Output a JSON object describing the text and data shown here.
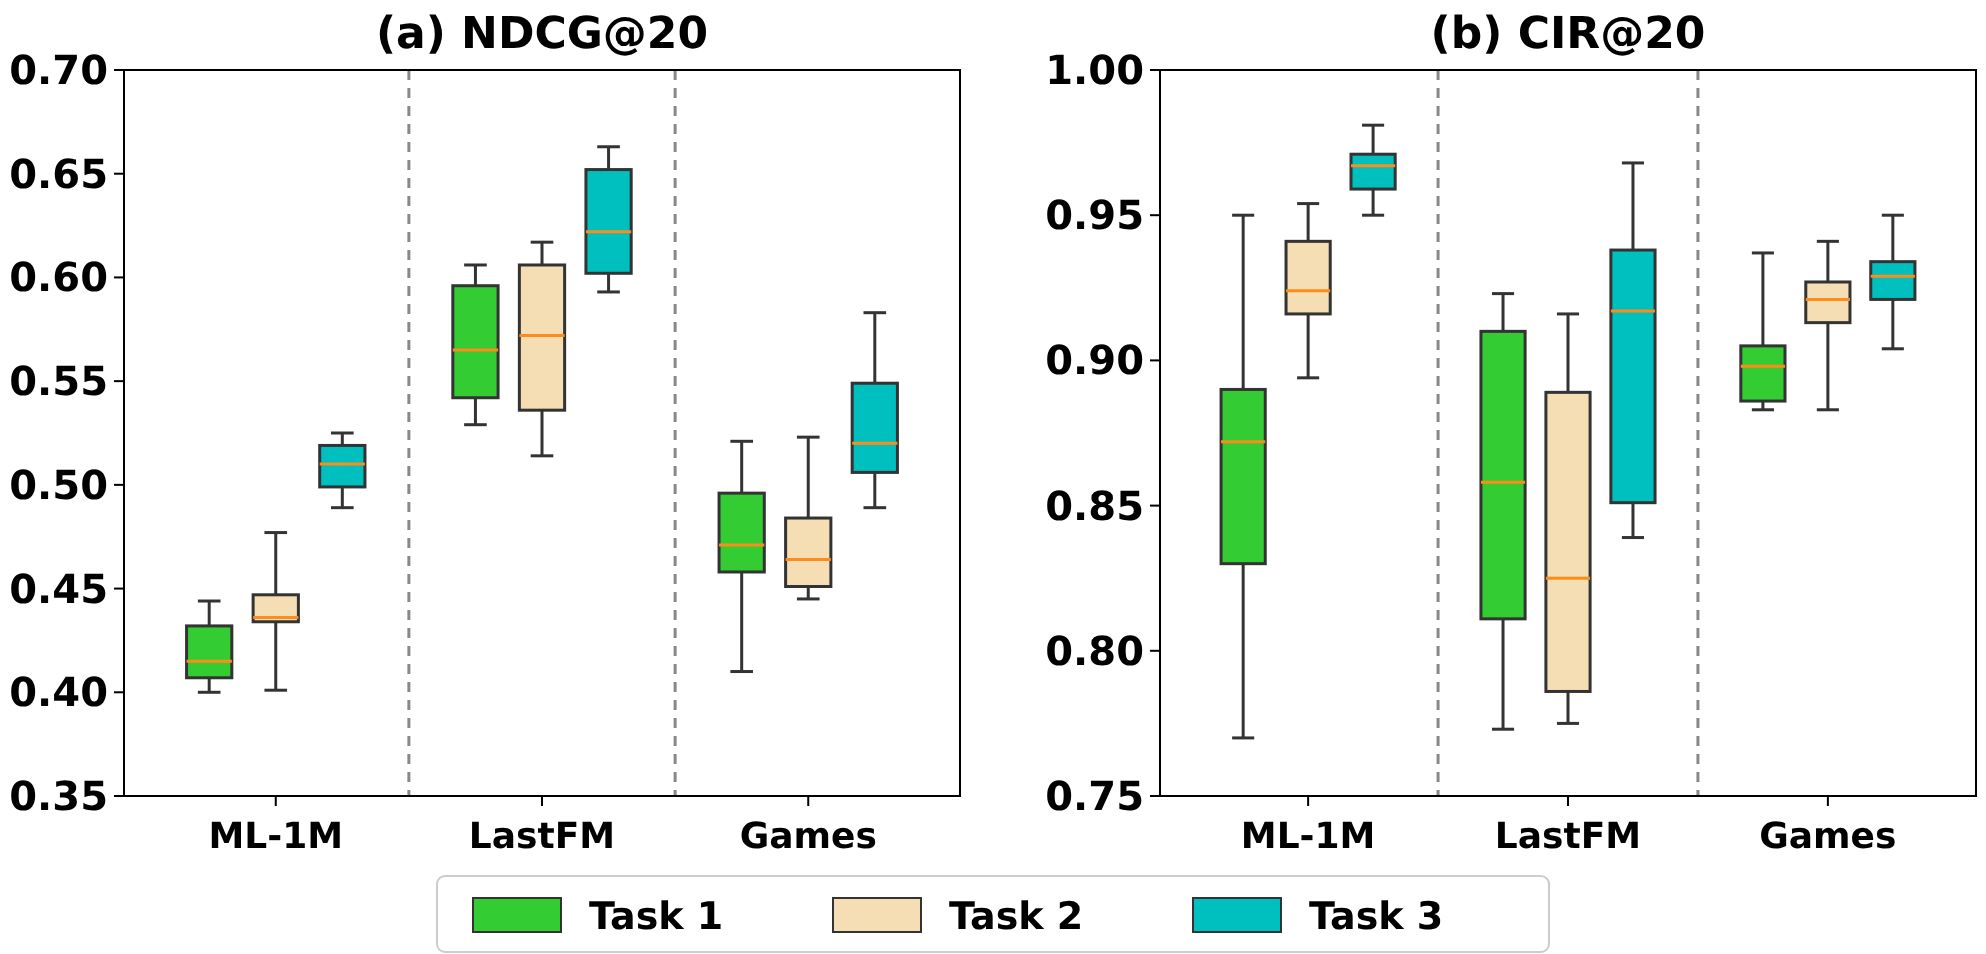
{
  "chart_data": [
    {
      "type": "box",
      "title": "(a) NDCG@20",
      "categories": [
        "ML-1M",
        "LastFM",
        "Games"
      ],
      "ylim": [
        0.35,
        0.7
      ],
      "yticks": [
        {
          "value": 0.35,
          "label": "0.35"
        },
        {
          "value": 0.4,
          "label": "0.40"
        },
        {
          "value": 0.45,
          "label": "0.45"
        },
        {
          "value": 0.5,
          "label": "0.50"
        },
        {
          "value": 0.55,
          "label": "0.55"
        },
        {
          "value": 0.6,
          "label": "0.60"
        },
        {
          "value": 0.65,
          "label": "0.65"
        },
        {
          "value": 0.7,
          "label": "0.70"
        }
      ],
      "legend": "bottom",
      "grid": false,
      "series": [
        {
          "name": "Task 1",
          "color": "#33cc33",
          "boxes": [
            {
              "low": 0.4,
              "q1": 0.407,
              "median": 0.415,
              "q3": 0.432,
              "high": 0.444
            },
            {
              "low": 0.529,
              "q1": 0.542,
              "median": 0.565,
              "q3": 0.596,
              "high": 0.606
            },
            {
              "low": 0.41,
              "q1": 0.458,
              "median": 0.471,
              "q3": 0.496,
              "high": 0.521
            }
          ]
        },
        {
          "name": "Task 2",
          "color": "#f5deb3",
          "boxes": [
            {
              "low": 0.401,
              "q1": 0.434,
              "median": 0.436,
              "q3": 0.447,
              "high": 0.477
            },
            {
              "low": 0.514,
              "q1": 0.536,
              "median": 0.572,
              "q3": 0.606,
              "high": 0.617
            },
            {
              "low": 0.445,
              "q1": 0.451,
              "median": 0.464,
              "q3": 0.484,
              "high": 0.523
            }
          ]
        },
        {
          "name": "Task 3",
          "color": "#00bfbf",
          "boxes": [
            {
              "low": 0.489,
              "q1": 0.499,
              "median": 0.51,
              "q3": 0.519,
              "high": 0.525
            },
            {
              "low": 0.593,
              "q1": 0.602,
              "median": 0.622,
              "q3": 0.652,
              "high": 0.663
            },
            {
              "low": 0.489,
              "q1": 0.506,
              "median": 0.52,
              "q3": 0.549,
              "high": 0.583
            }
          ]
        }
      ]
    },
    {
      "type": "box",
      "title": "(b) CIR@20",
      "categories": [
        "ML-1M",
        "LastFM",
        "Games"
      ],
      "ylim": [
        0.75,
        1.0
      ],
      "yticks": [
        {
          "value": 0.75,
          "label": "0.75"
        },
        {
          "value": 0.8,
          "label": "0.80"
        },
        {
          "value": 0.85,
          "label": "0.85"
        },
        {
          "value": 0.9,
          "label": "0.90"
        },
        {
          "value": 0.95,
          "label": "0.95"
        },
        {
          "value": 1.0,
          "label": "1.00"
        }
      ],
      "grid": false,
      "series": [
        {
          "name": "Task 1",
          "color": "#33cc33",
          "boxes": [
            {
              "low": 0.77,
              "q1": 0.83,
              "median": 0.872,
              "q3": 0.89,
              "high": 0.95
            },
            {
              "low": 0.773,
              "q1": 0.811,
              "median": 0.858,
              "q3": 0.91,
              "high": 0.923
            },
            {
              "low": 0.883,
              "q1": 0.886,
              "median": 0.898,
              "q3": 0.905,
              "high": 0.937
            }
          ]
        },
        {
          "name": "Task 2",
          "color": "#f5deb3",
          "boxes": [
            {
              "low": 0.894,
              "q1": 0.916,
              "median": 0.924,
              "q3": 0.941,
              "high": 0.954
            },
            {
              "low": 0.775,
              "q1": 0.786,
              "median": 0.825,
              "q3": 0.889,
              "high": 0.916
            },
            {
              "low": 0.883,
              "q1": 0.913,
              "median": 0.921,
              "q3": 0.927,
              "high": 0.941
            }
          ]
        },
        {
          "name": "Task 3",
          "color": "#00bfbf",
          "boxes": [
            {
              "low": 0.95,
              "q1": 0.959,
              "median": 0.967,
              "q3": 0.971,
              "high": 0.981
            },
            {
              "low": 0.839,
              "q1": 0.851,
              "median": 0.917,
              "q3": 0.938,
              "high": 0.968
            },
            {
              "low": 0.904,
              "q1": 0.921,
              "median": 0.929,
              "q3": 0.934,
              "high": 0.95
            }
          ]
        }
      ]
    }
  ]
}
